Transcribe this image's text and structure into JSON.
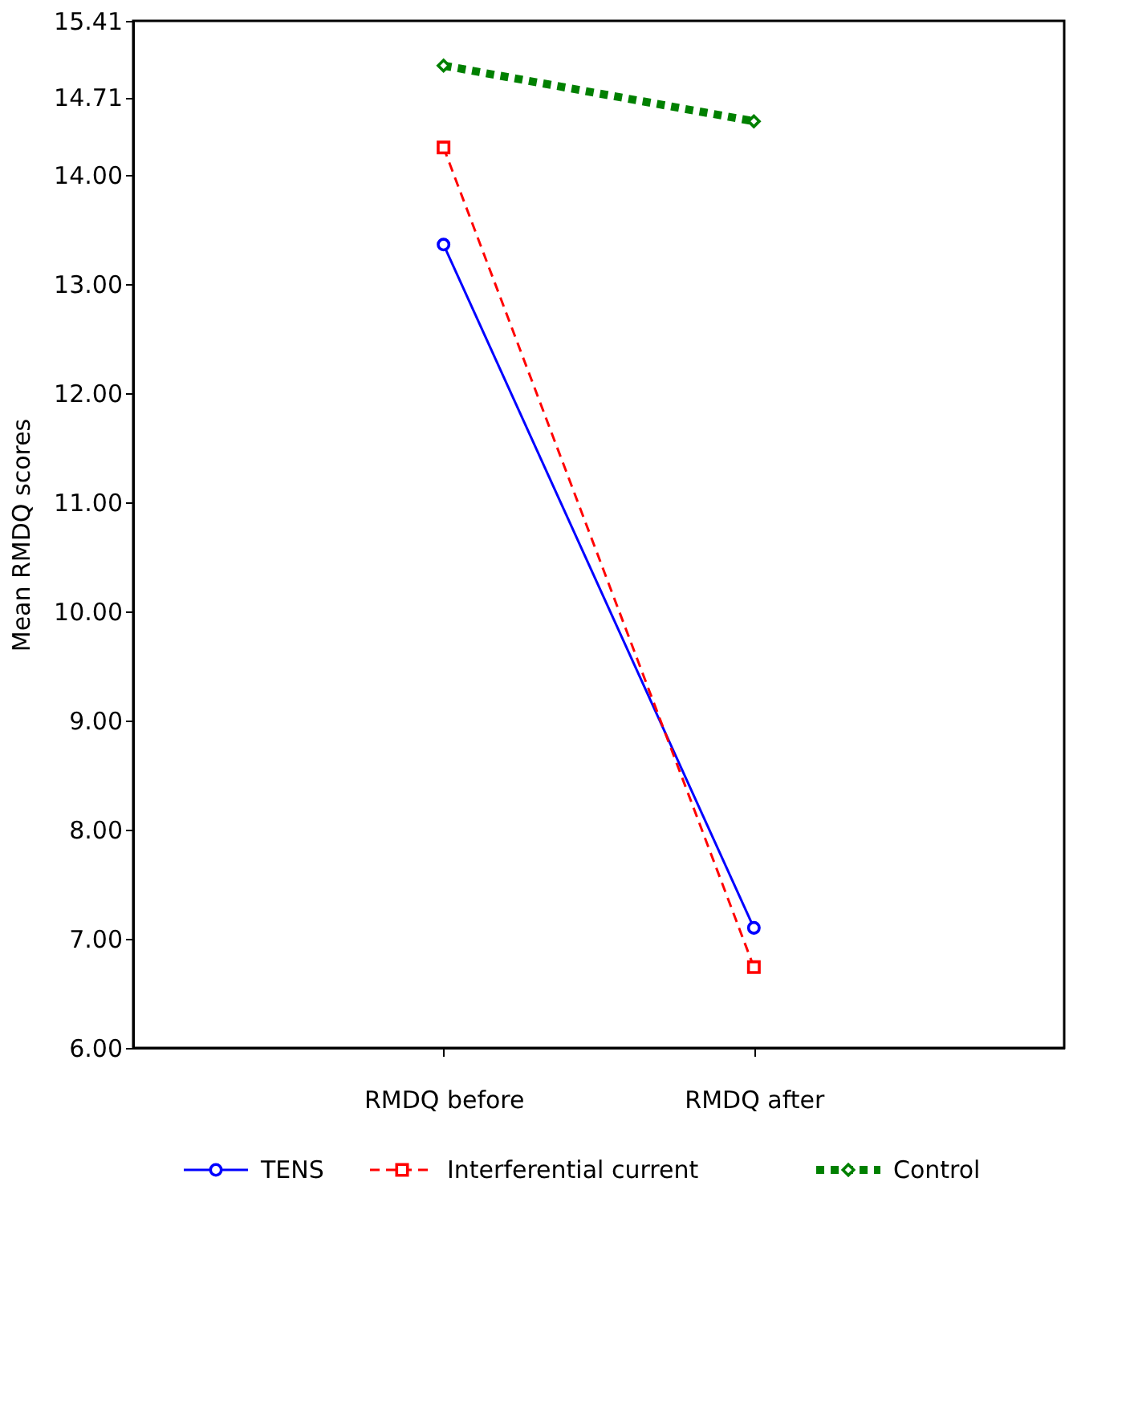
{
  "chart_data": {
    "type": "line",
    "ylabel": "Mean RMDQ scores",
    "categories": [
      "RMDQ before",
      "RMDQ after"
    ],
    "ylim": [
      6,
      15.41
    ],
    "yticks": [
      {
        "value": 6,
        "label": "6.00"
      },
      {
        "value": 7,
        "label": "7.00"
      },
      {
        "value": 8,
        "label": "8.00"
      },
      {
        "value": 9,
        "label": "9.00"
      },
      {
        "value": 10,
        "label": "10.00"
      },
      {
        "value": 11,
        "label": "11.00"
      },
      {
        "value": 12,
        "label": "12.00"
      },
      {
        "value": 13,
        "label": "13.00"
      },
      {
        "value": 14,
        "label": "14.00"
      },
      14.71,
      15.41
    ],
    "series": [
      {
        "name": "TENS",
        "color": "#0000ff",
        "values": [
          13.36,
          7.1
        ],
        "line_style": "solid",
        "marker": "circle"
      },
      {
        "name": "Interferential current",
        "color": "#ff0000",
        "values": [
          14.25,
          6.74
        ],
        "line_style": "dashed",
        "marker": "square"
      },
      {
        "name": "Control",
        "color": "#008000",
        "values": [
          15.0,
          14.49
        ],
        "line_style": "dotted",
        "marker": "diamond"
      }
    ],
    "legend": "bottom",
    "grid": false
  }
}
